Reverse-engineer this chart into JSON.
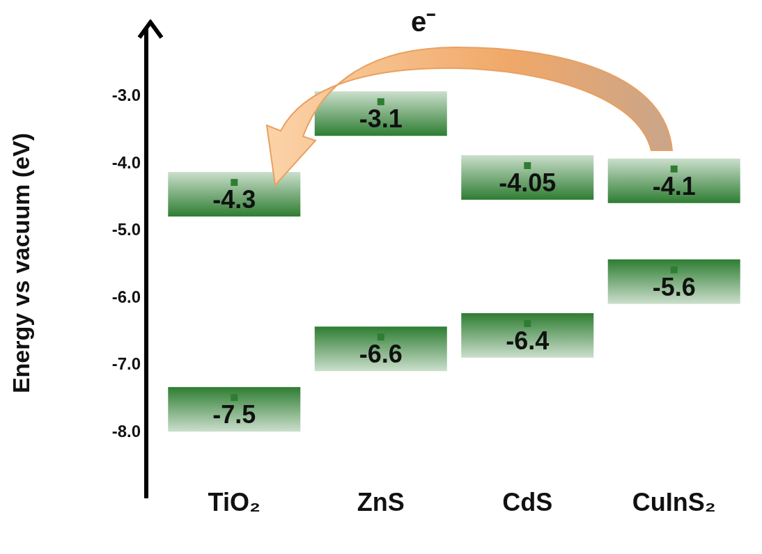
{
  "chart_data": {
    "type": "scatter",
    "ylabel": "Energy vs vacuum (eV)",
    "categories": [
      "TiO₂",
      "ZnS",
      "CdS",
      "CuInS₂"
    ],
    "series": [
      {
        "color": "#2e7d32",
        "values": [
          -4.3,
          -3.1,
          -4.05,
          -4.1
        ]
      },
      {
        "color": "#2e7d32",
        "values": [
          -7.5,
          -6.6,
          -6.4,
          -5.6
        ]
      }
    ],
    "ylim": [
      -9,
      -2
    ],
    "yticks": [
      {
        "value": -3,
        "label": "-3.0"
      },
      {
        "value": -4,
        "label": "-4.0"
      },
      {
        "value": -5,
        "label": "-5.0"
      },
      {
        "value": -6,
        "label": "-6.0"
      },
      {
        "value": -7,
        "label": "-7.0"
      },
      {
        "value": -8,
        "label": "-8.0"
      }
    ],
    "data_labels": true,
    "marker": "square",
    "grid": false,
    "legend": false,
    "annotations": [
      "e⁻"
    ]
  }
}
